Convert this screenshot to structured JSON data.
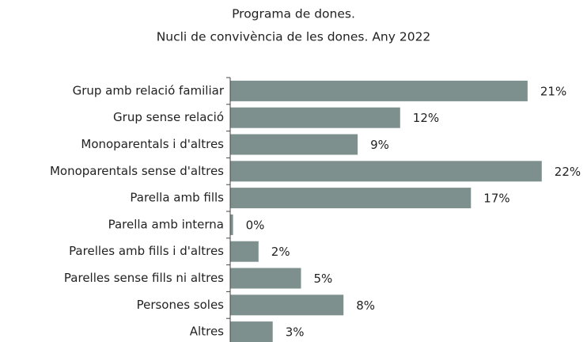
{
  "chart_data": {
    "type": "hbar",
    "title": "Programa de dones.",
    "subtitle": "Nucli de convivència de les dones. Any 2022",
    "categories": [
      "Grup amb relació familiar",
      "Grup sense relació",
      "Monoparentals i d'altres",
      "Monoparentals sense d'altres",
      "Parella amb fills",
      "Parella amb interna",
      "Parelles amb fills i d'altres",
      "Parelles sense fills ni altres",
      "Persones soles",
      "Altres"
    ],
    "values": [
      21,
      12,
      9,
      22,
      17,
      0.2,
      2,
      5,
      8,
      3
    ],
    "value_labels": [
      "21%",
      "12%",
      "9%",
      "22%",
      "17%",
      "0%",
      "2%",
      "5%",
      "8%",
      "3%"
    ],
    "color": "#7d908e"
  }
}
